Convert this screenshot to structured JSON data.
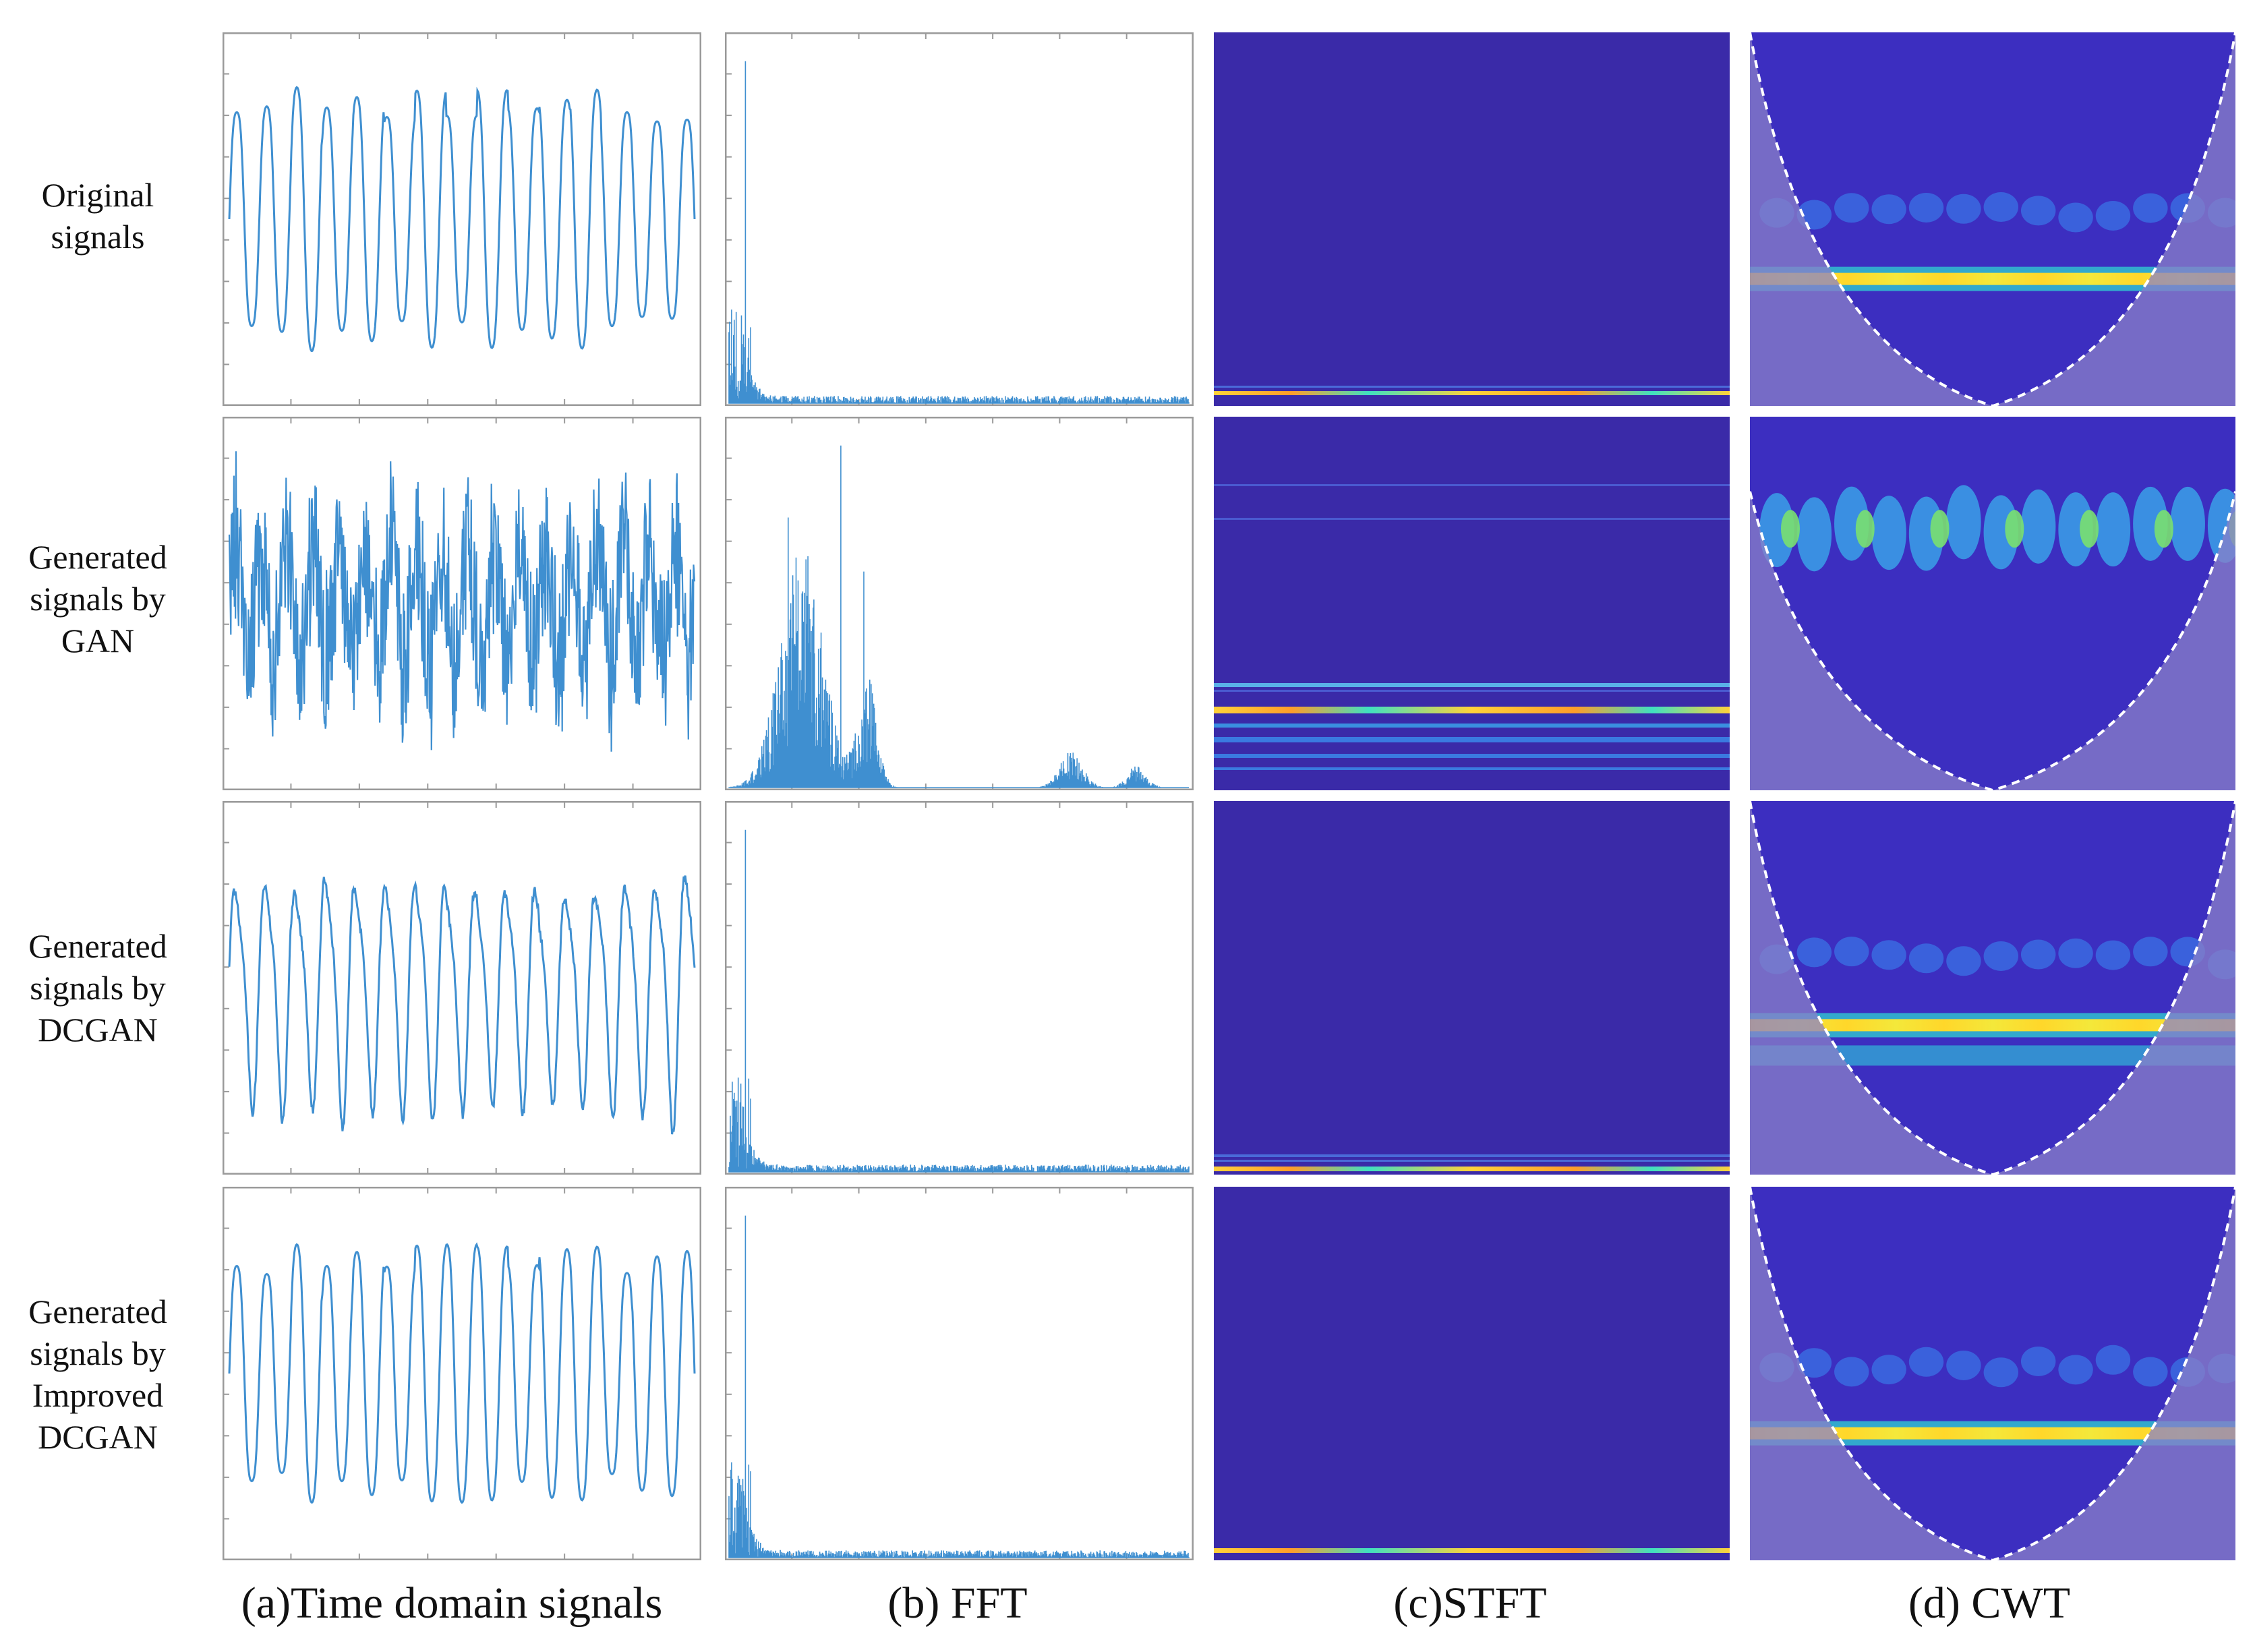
{
  "rows": [
    {
      "label_lines": [
        "Original",
        "signals"
      ]
    },
    {
      "label_lines": [
        "Generated",
        "signals by",
        "GAN"
      ]
    },
    {
      "label_lines": [
        "Generated",
        "signals by",
        "DCGAN"
      ]
    },
    {
      "label_lines": [
        "Generated",
        "signals by",
        "Improved",
        "DCGAN"
      ]
    }
  ],
  "columns": [
    {
      "caption": "(a)Time domain signals"
    },
    {
      "caption": "(b) FFT"
    },
    {
      "caption": "(c)STFT"
    },
    {
      "caption": "(d) CWT"
    }
  ],
  "colors": {
    "signal": "#3f8fd0",
    "axis": "#9a9a9a",
    "heat_bg": "#3a2aa8",
    "cone_overlay": "#8a80c8"
  }
}
